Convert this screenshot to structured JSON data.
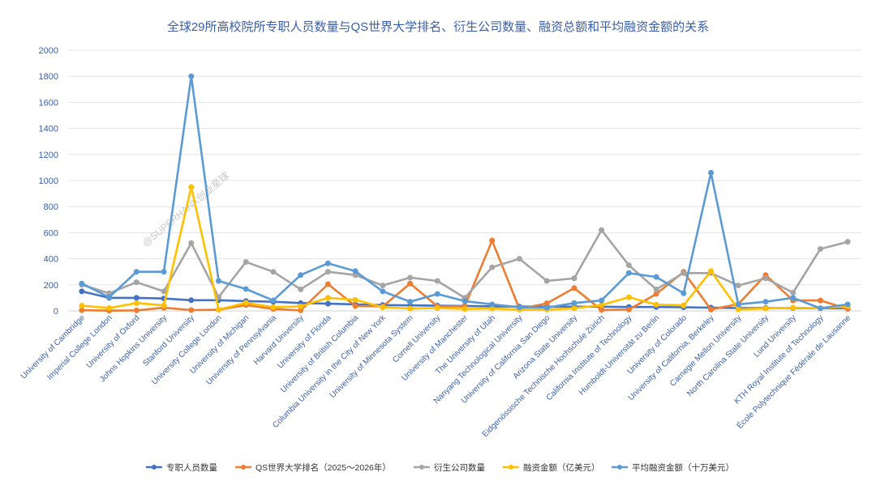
{
  "chart_data": {
    "type": "line",
    "title": "全球29所高校院所专职人员数量与QS世界大学排名、衍生公司数量、融资总额和平均融资金额的关系",
    "watermark": "@SUPERHANK创业星球",
    "xlabel": "",
    "ylabel": "",
    "ylim": [
      0,
      2000
    ],
    "yticks": [
      0,
      200,
      400,
      600,
      800,
      1000,
      1200,
      1400,
      1600,
      1800,
      2000
    ],
    "grid": true,
    "legend_position": "bottom",
    "categories": [
      "University of Cambridge",
      "Imperial College London",
      "University of Oxford",
      "Johns Hopkins University",
      "Stanford University",
      "University College London",
      "University of Michigan",
      "University of Pennsylvania",
      "Harvard University",
      "University of Florida",
      "University of British Columbia",
      "Columbia University in the City of New York",
      "University of Minnesota System",
      "Cornell University",
      "University of Manchester",
      "The University of Utah",
      "Nanyang Technological University",
      "University of California San Diego",
      "Arizona State University",
      "Eidgenössische Technische Hochschule Zürich",
      "California Institute of Technology",
      "Humboldt-Universität zu Berlin",
      "University of Colorado",
      "University of California, Berkeley",
      "Carnegie Mellon University",
      "North Carolina State University",
      "Lund University",
      "KTH Royal Institute of Technology",
      "École Polytechnique Fédérale de Lausanne"
    ],
    "series": [
      {
        "name": "专职人员数量",
        "color": "#4472c4",
        "values": [
          150,
          100,
          100,
          95,
          82,
          82,
          75,
          70,
          60,
          55,
          50,
          45,
          42,
          40,
          38,
          35,
          33,
          32,
          32,
          32,
          30,
          30,
          28,
          25,
          22,
          22,
          22,
          20,
          20
        ]
      },
      {
        "name": "QS世界大学排名（2025～2026年）",
        "color": "#ed7d31",
        "values": [
          5,
          2,
          4,
          24,
          6,
          9,
          45,
          15,
          4,
          205,
          38,
          34,
          210,
          35,
          35,
          540,
          15,
          58,
          175,
          7,
          10,
          130,
          300,
          10,
          52,
          275,
          80,
          80,
          15
        ]
      },
      {
        "name": "衍生公司数量",
        "color": "#a5a5a5",
        "values": [
          200,
          135,
          220,
          150,
          520,
          105,
          375,
          300,
          165,
          300,
          275,
          195,
          255,
          230,
          100,
          335,
          400,
          230,
          250,
          620,
          350,
          165,
          290,
          290,
          195,
          250,
          140,
          475,
          530
        ]
      },
      {
        "name": "融资金额（亿美元）",
        "color": "#ffc000",
        "values": [
          40,
          22,
          60,
          42,
          950,
          10,
          62,
          28,
          35,
          100,
          85,
          28,
          18,
          22,
          15,
          18,
          10,
          10,
          20,
          45,
          105,
          48,
          42,
          305,
          12,
          18,
          25,
          20,
          35
        ]
      },
      {
        "name": "平均融资金额（十万美元）",
        "color": "#5b9bd5",
        "values": [
          210,
          105,
          300,
          300,
          1800,
          230,
          168,
          80,
          275,
          365,
          305,
          150,
          70,
          130,
          75,
          50,
          28,
          25,
          60,
          80,
          290,
          260,
          135,
          1060,
          50,
          70,
          100,
          20,
          50
        ]
      }
    ]
  }
}
